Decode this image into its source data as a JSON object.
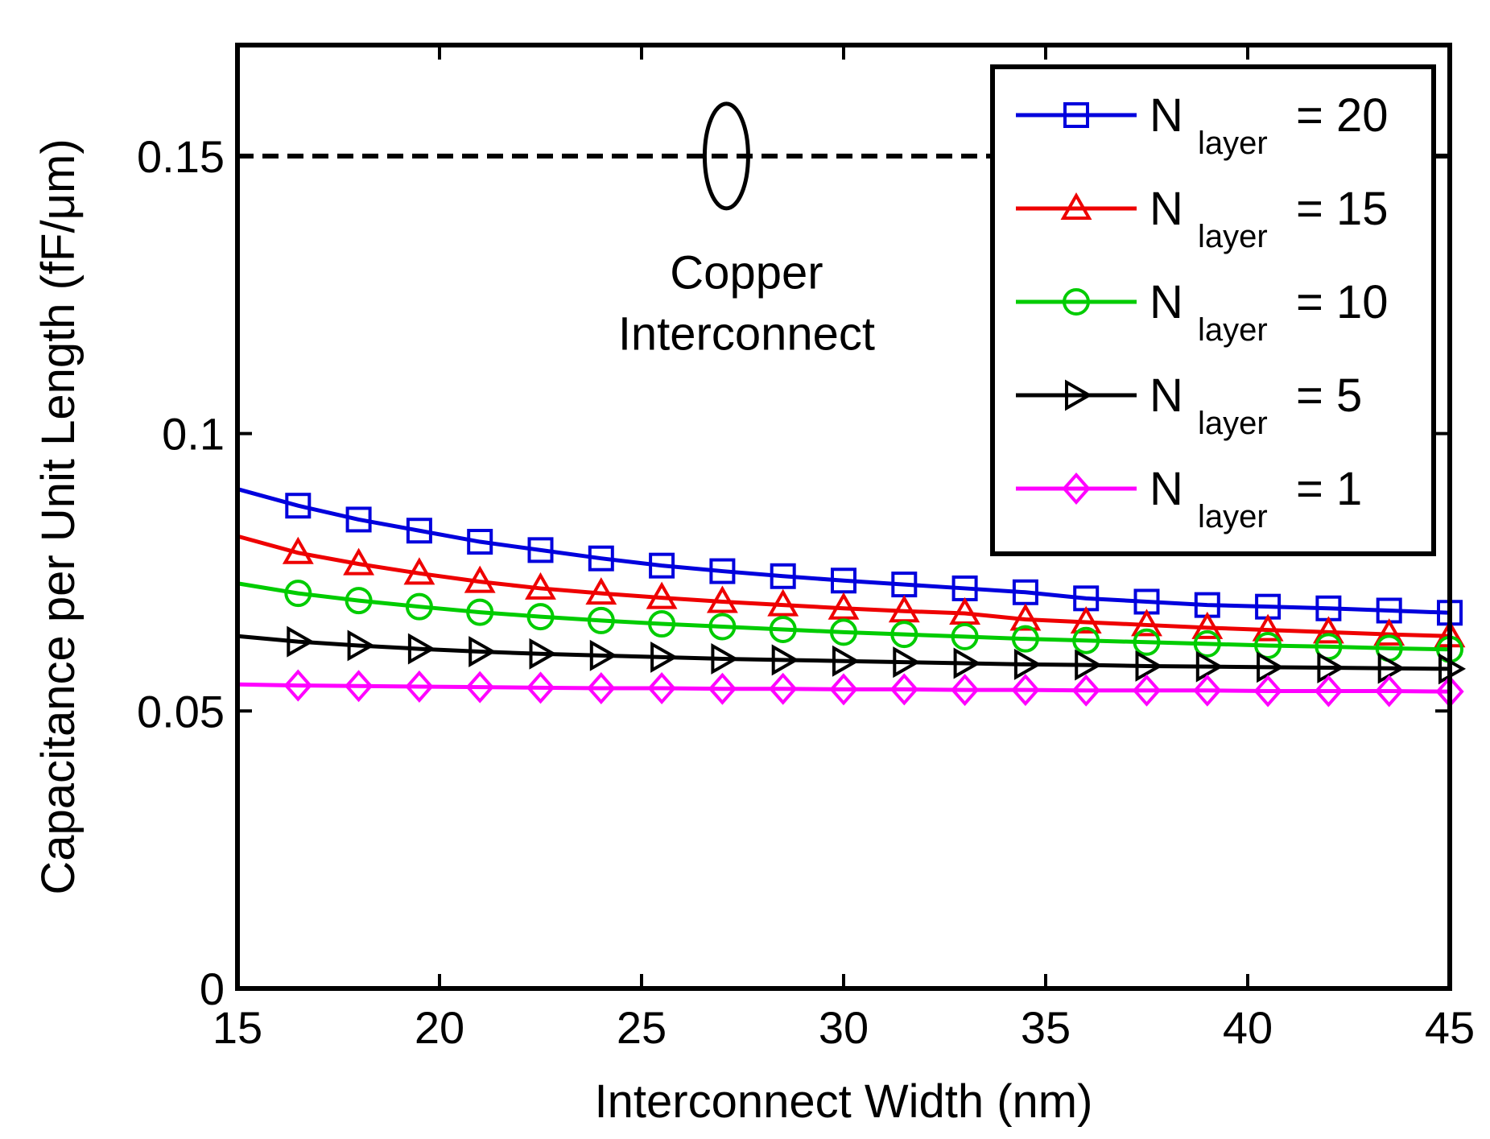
{
  "chart_data": {
    "type": "line",
    "title": "",
    "xlabel": "Interconnect Width (nm)",
    "ylabel": "Capacitance per Unit Length (fF/μm)",
    "xlim": [
      15,
      45
    ],
    "ylim": [
      0,
      0.17
    ],
    "xticks": [
      15,
      20,
      25,
      30,
      35,
      40,
      45
    ],
    "xtick_labels": [
      "15",
      "20",
      "25",
      "30",
      "35",
      "40",
      "45"
    ],
    "yticks": [
      0,
      0.05,
      0.1,
      0.15
    ],
    "ytick_labels": [
      "0",
      "0.05",
      "0.1",
      "0.15"
    ],
    "grid": false,
    "legend_position": "top-right",
    "x": [
      15,
      16.5,
      18,
      19.5,
      21,
      22.5,
      24,
      25.5,
      27,
      28.5,
      30,
      31.5,
      33,
      34.5,
      36,
      37.5,
      39,
      40.5,
      42,
      43.5,
      45
    ],
    "series": [
      {
        "name": "N layer = 20",
        "label_main": "N",
        "label_sub": "layer",
        "label_value": "= 20",
        "color": "#0000dd",
        "marker": "square",
        "values": [
          0.09,
          0.087,
          0.0845,
          0.0825,
          0.0805,
          0.079,
          0.0775,
          0.0762,
          0.0752,
          0.0743,
          0.0735,
          0.0728,
          0.0721,
          0.0714,
          0.0703,
          0.0697,
          0.0691,
          0.0688,
          0.0685,
          0.0681,
          0.0677
        ]
      },
      {
        "name": "N layer = 15",
        "label_main": "N",
        "label_sub": "layer",
        "label_value": "= 15",
        "color": "#ee0000",
        "marker": "triangle-up",
        "values": [
          0.0815,
          0.0785,
          0.0765,
          0.0748,
          0.0733,
          0.0721,
          0.0712,
          0.0704,
          0.0697,
          0.0691,
          0.0685,
          0.068,
          0.0676,
          0.0665,
          0.066,
          0.0655,
          0.065,
          0.0646,
          0.0642,
          0.0638,
          0.0635
        ]
      },
      {
        "name": "N layer = 10",
        "label_main": "N",
        "label_sub": "layer",
        "label_value": "= 10",
        "color": "#00cc00",
        "marker": "circle",
        "values": [
          0.073,
          0.0712,
          0.0699,
          0.0688,
          0.0678,
          0.067,
          0.0663,
          0.0657,
          0.0652,
          0.0647,
          0.0642,
          0.0638,
          0.0634,
          0.063,
          0.0627,
          0.0624,
          0.0621,
          0.0618,
          0.0616,
          0.0613,
          0.0611
        ]
      },
      {
        "name": "N layer = 5",
        "label_main": "N",
        "label_sub": "layer",
        "label_value": "= 5",
        "color": "#000000",
        "marker": "triangle-right",
        "values": [
          0.0635,
          0.0625,
          0.0618,
          0.0612,
          0.0607,
          0.0603,
          0.06,
          0.0597,
          0.0594,
          0.0592,
          0.059,
          0.0588,
          0.0586,
          0.0584,
          0.0583,
          0.0581,
          0.058,
          0.0579,
          0.0578,
          0.0577,
          0.0576
        ]
      },
      {
        "name": "N layer = 1",
        "label_main": "N",
        "label_sub": "layer",
        "label_value": "= 1",
        "color": "#ff00ff",
        "marker": "diamond",
        "values": [
          0.0548,
          0.0546,
          0.0545,
          0.0544,
          0.0543,
          0.0542,
          0.0541,
          0.0541,
          0.054,
          0.054,
          0.0539,
          0.0539,
          0.0538,
          0.0538,
          0.0537,
          0.0537,
          0.0537,
          0.0536,
          0.0536,
          0.0536,
          0.0535
        ]
      }
    ],
    "reference_line": {
      "name": "Copper Interconnect",
      "value": 0.15,
      "style": "dashed",
      "color": "#000000"
    },
    "annotation": {
      "line1": "Copper",
      "line2": "Interconnect",
      "x": 27.1,
      "y1": 0.129,
      "y2": 0.118
    }
  }
}
